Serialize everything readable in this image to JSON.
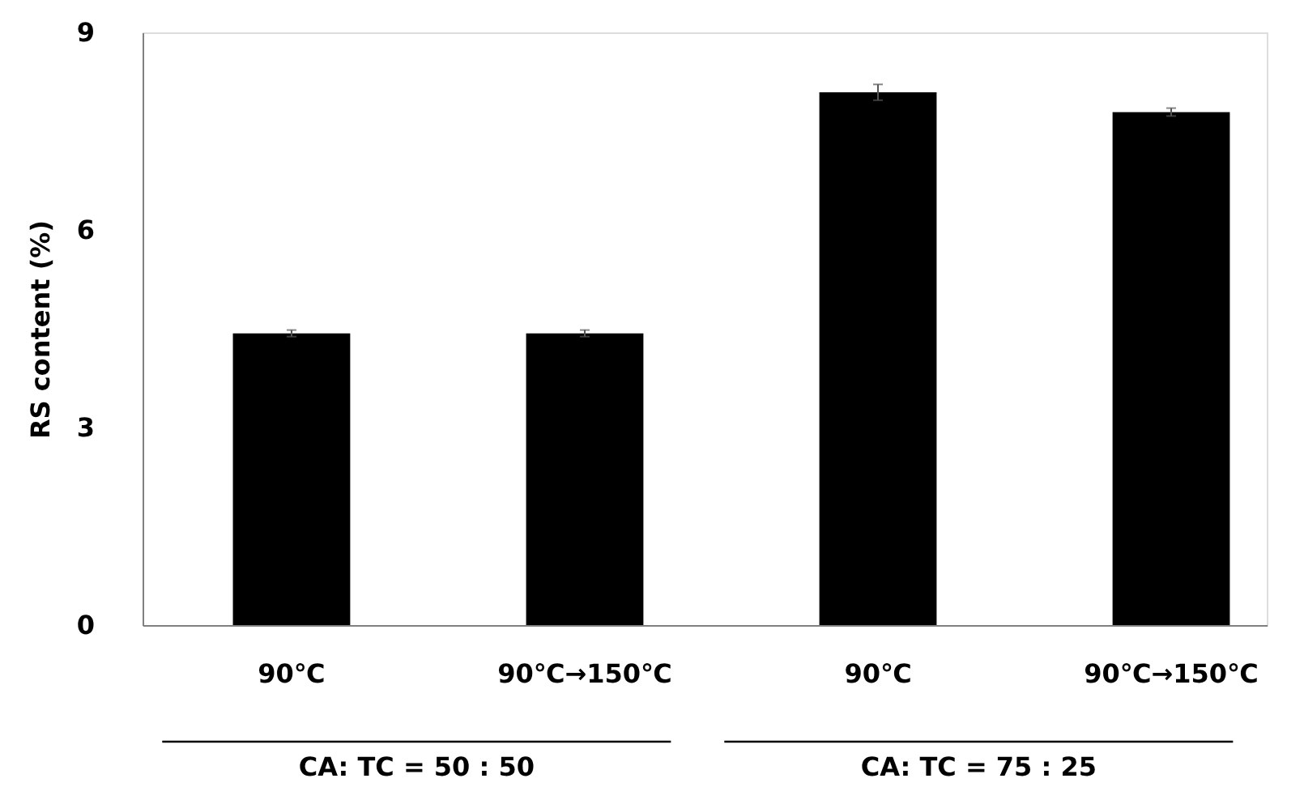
{
  "chart_data": {
    "type": "bar",
    "ylabel": "RS content (%)",
    "categories": [
      "90℃",
      "90℃→150℃",
      "90℃",
      "90℃→150℃"
    ],
    "values": [
      4.43,
      4.43,
      8.09,
      7.79
    ],
    "errors": [
      0.05,
      0.05,
      0.12,
      0.06
    ],
    "color": "#000000",
    "ylim": [
      0,
      9
    ],
    "yticks": [
      0,
      3,
      6,
      9
    ],
    "grid": false,
    "annotations": [
      "CA: TC = 50 : 50",
      "CA: TC = 75 : 25"
    ]
  }
}
